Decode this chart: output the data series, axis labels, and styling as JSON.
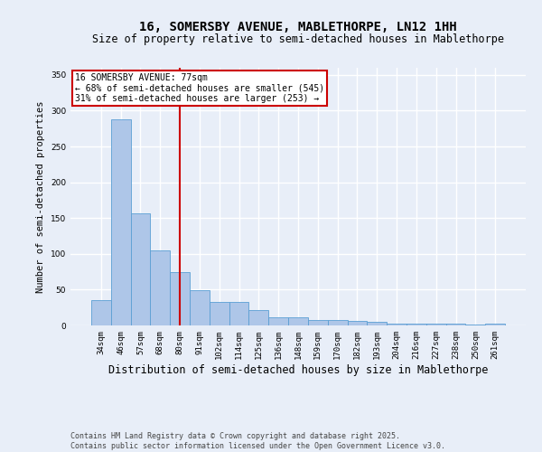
{
  "title": "16, SOMERSBY AVENUE, MABLETHORPE, LN12 1HH",
  "subtitle": "Size of property relative to semi-detached houses in Mablethorpe",
  "xlabel": "Distribution of semi-detached houses by size in Mablethorpe",
  "ylabel": "Number of semi-detached properties",
  "categories": [
    "34sqm",
    "46sqm",
    "57sqm",
    "68sqm",
    "80sqm",
    "91sqm",
    "102sqm",
    "114sqm",
    "125sqm",
    "136sqm",
    "148sqm",
    "159sqm",
    "170sqm",
    "182sqm",
    "193sqm",
    "204sqm",
    "216sqm",
    "227sqm",
    "238sqm",
    "250sqm",
    "261sqm"
  ],
  "values": [
    35,
    288,
    157,
    105,
    75,
    49,
    33,
    33,
    22,
    12,
    11,
    7,
    7,
    6,
    5,
    3,
    2,
    3,
    2,
    1,
    3
  ],
  "bar_color": "#aec6e8",
  "bar_edge_color": "#5a9fd4",
  "red_line_index": 4,
  "red_line_label": "16 SOMERSBY AVENUE: 77sqm",
  "annotation_line2": "← 68% of semi-detached houses are smaller (545)",
  "annotation_line3": "31% of semi-detached houses are larger (253) →",
  "annotation_box_color": "#ffffff",
  "annotation_box_edge": "#cc0000",
  "vline_color": "#cc0000",
  "ylim": [
    0,
    360
  ],
  "yticks": [
    0,
    50,
    100,
    150,
    200,
    250,
    300,
    350
  ],
  "footer": "Contains HM Land Registry data © Crown copyright and database right 2025.\nContains public sector information licensed under the Open Government Licence v3.0.",
  "background_color": "#e8eef8",
  "plot_background": "#e8eef8",
  "grid_color": "#ffffff",
  "title_fontsize": 10,
  "subtitle_fontsize": 8.5,
  "xlabel_fontsize": 8.5,
  "ylabel_fontsize": 7.5,
  "tick_fontsize": 6.5,
  "footer_fontsize": 6,
  "annot_fontsize": 7
}
